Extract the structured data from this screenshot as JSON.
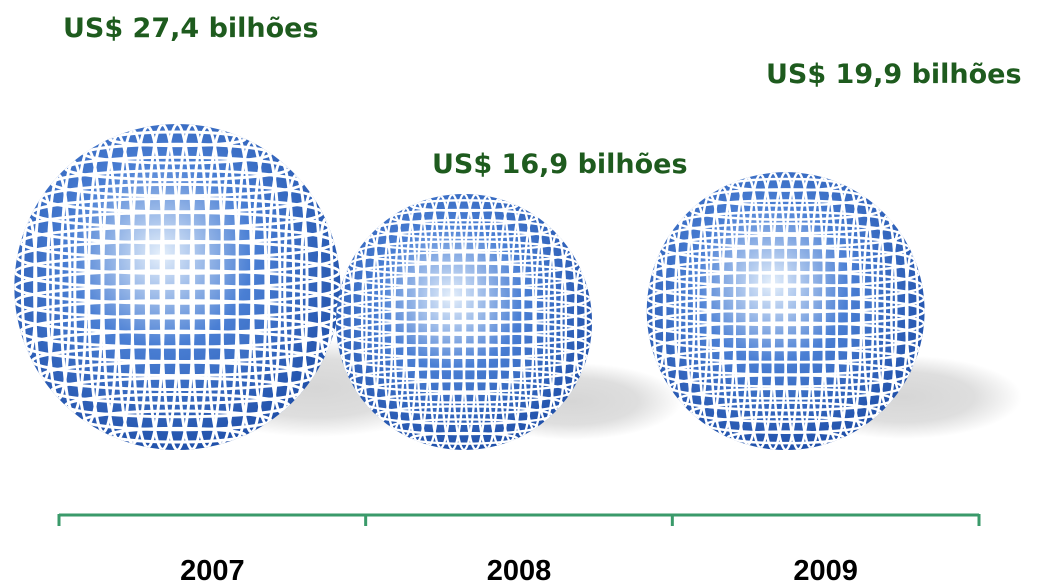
{
  "chart_data": {
    "type": "bubble",
    "categories": [
      "2007",
      "2008",
      "2009"
    ],
    "values": [
      27.4,
      16.9,
      19.9
    ],
    "value_labels": [
      "US$ 27,4 bilhões",
      "US$ 16,9 bilhões",
      "US$ 19,9 bilhões"
    ],
    "unit": "US$ bilhões",
    "title": "",
    "xlabel": "",
    "ylabel": "",
    "colors": {
      "sphere_dark": "#1f4fa8",
      "sphere_mid": "#4a7fd4",
      "sphere_light": "#e6f0fb",
      "grid_lines": "#ffffff",
      "label_text": "#1e5b1e",
      "axis_line": "#3a9a6a",
      "shadow": "#d6d6d6"
    }
  }
}
